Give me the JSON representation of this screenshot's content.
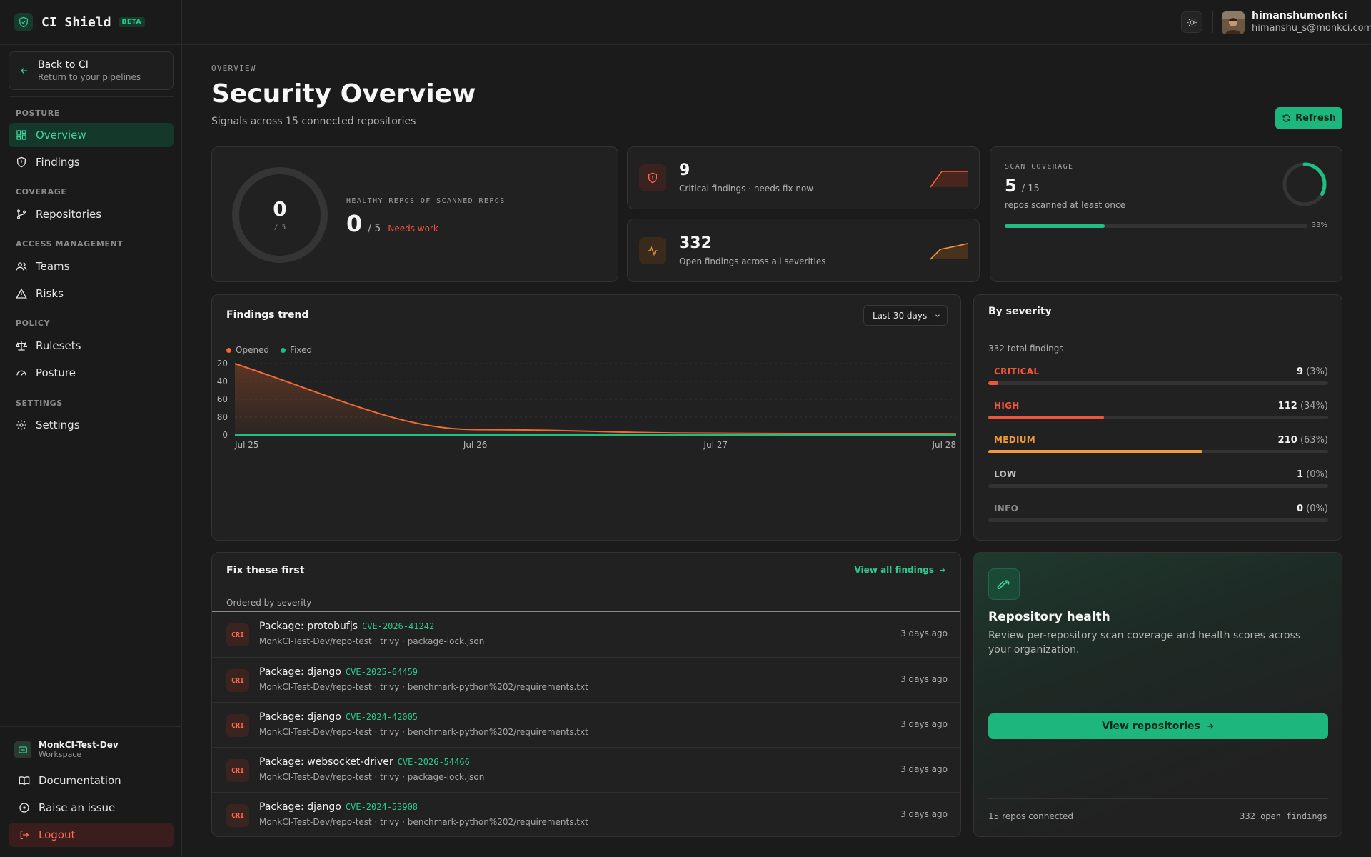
{
  "brand": {
    "name": "CI Shield",
    "badge": "BETA"
  },
  "back": {
    "title": "Back to CI",
    "subtitle": "Return to your pipelines"
  },
  "sidebar": {
    "sections": [
      "POSTURE",
      "COVERAGE",
      "ACCESS MANAGEMENT",
      "POLICY",
      "SETTINGS"
    ],
    "items": [
      "Overview",
      "Findings",
      "Repositories",
      "Teams",
      "Risks",
      "Rulesets",
      "Posture",
      "Settings"
    ],
    "workspace": {
      "name": "MonkCI-Test-Dev",
      "label": "Workspace"
    },
    "bottom": [
      "Documentation",
      "Raise an issue",
      "Logout"
    ]
  },
  "user": {
    "name": "himanshumonkci",
    "email": "himanshu_s@monkci.com"
  },
  "header": {
    "eyebrow": "OVERVIEW",
    "title": "Security Overview",
    "subtitle": "Signals across 15 connected repositories",
    "refresh": "Refresh"
  },
  "healthy": {
    "ring_value": "0",
    "ring_total": "/ 5",
    "label": "HEALTHY REPOS OF SCANNED REPOS",
    "value": "0",
    "total": "/ 5",
    "status": "Needs work",
    "fraction": 0
  },
  "critical": {
    "value": "9",
    "label": "Critical findings · needs fix now"
  },
  "open": {
    "value": "332",
    "label": "Open findings across all severities"
  },
  "coverage": {
    "label": "SCAN COVERAGE",
    "value": "5",
    "total": "/ 15",
    "sub": "repos scanned at least once",
    "percent_label": "33%",
    "fraction": 0.33
  },
  "trend": {
    "title": "Findings trend",
    "range": "Last 30 days",
    "legend": [
      "Opened",
      "Fixed"
    ],
    "colors": {
      "opened": "#f06a32",
      "fixed": "#1fbf83"
    }
  },
  "chart_data": {
    "type": "line",
    "x": [
      "Jul 25",
      "Jul 26",
      "Jul 27",
      "Jul 28"
    ],
    "yticks": [
      "0",
      "80",
      "60",
      "40",
      "20"
    ],
    "ylim": [
      0,
      320
    ],
    "series": [
      {
        "name": "Opened",
        "values": [
          320,
          24,
          8,
          3
        ]
      },
      {
        "name": "Fixed",
        "values": [
          0,
          0,
          0,
          0
        ]
      }
    ]
  },
  "severity": {
    "title": "By severity",
    "total": "332 total findings",
    "rows": [
      {
        "label": "CRITICAL",
        "count": "9",
        "pct": "(3%)",
        "fraction": 0.03,
        "color": "#f0553a"
      },
      {
        "label": "HIGH",
        "count": "112",
        "pct": "(34%)",
        "fraction": 0.34,
        "color": "#f0553a"
      },
      {
        "label": "MEDIUM",
        "count": "210",
        "pct": "(63%)",
        "fraction": 0.63,
        "color": "#f2993a"
      },
      {
        "label": "LOW",
        "count": "1",
        "pct": "(0%)",
        "fraction": 0.0,
        "color": "#bdbdbd"
      },
      {
        "label": "INFO",
        "count": "0",
        "pct": "(0%)",
        "fraction": 0.0,
        "color": "#8a8a8a"
      }
    ]
  },
  "fix": {
    "title": "Fix these first",
    "link": "View all findings",
    "ordered": "Ordered by severity",
    "badge": "CRI",
    "items": [
      {
        "title": "Package: protobufjs",
        "cve": "CVE-2026-41242",
        "sub": "MonkCI-Test-Dev/repo-test · trivy · package-lock.json",
        "time": "3 days ago"
      },
      {
        "title": "Package: django",
        "cve": "CVE-2025-64459",
        "sub": "MonkCI-Test-Dev/repo-test · trivy · benchmark-python%202/requirements.txt",
        "time": "3 days ago"
      },
      {
        "title": "Package: django",
        "cve": "CVE-2024-42005",
        "sub": "MonkCI-Test-Dev/repo-test · trivy · benchmark-python%202/requirements.txt",
        "time": "3 days ago"
      },
      {
        "title": "Package: websocket-driver",
        "cve": "CVE-2026-54466",
        "sub": "MonkCI-Test-Dev/repo-test · trivy · package-lock.json",
        "time": "3 days ago"
      },
      {
        "title": "Package: django",
        "cve": "CVE-2024-53908",
        "sub": "MonkCI-Test-Dev/repo-test · trivy · benchmark-python%202/requirements.txt",
        "time": "3 days ago"
      }
    ]
  },
  "repo_health": {
    "title": "Repository health",
    "desc": "Review per-repository scan coverage and health scores across your organization.",
    "button": "View repositories",
    "connected": "15 repos connected",
    "open": "332 open findings"
  }
}
